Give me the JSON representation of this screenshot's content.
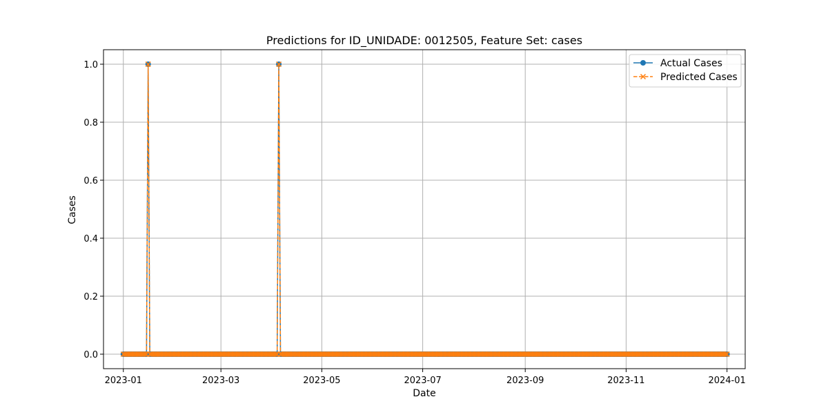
{
  "chart_data": {
    "type": "line",
    "title": "Predictions for ID_UNIDADE: 0012505, Feature Set: cases",
    "xlabel": "Date",
    "ylabel": "Cases",
    "x_range": [
      "2022-12-20",
      "2024-01-12"
    ],
    "ylim": [
      -0.05,
      1.05
    ],
    "x_ticks": [
      "2023-01-01",
      "2023-03-01",
      "2023-05-01",
      "2023-07-01",
      "2023-09-01",
      "2023-11-01",
      "2024-01-01"
    ],
    "x_tick_labels": [
      "2023-01",
      "2023-03",
      "2023-05",
      "2023-07",
      "2023-09",
      "2023-11",
      "2024-01"
    ],
    "y_ticks": [
      0.0,
      0.2,
      0.4,
      0.6,
      0.8,
      1.0
    ],
    "y_tick_labels": [
      "0.0",
      "0.2",
      "0.4",
      "0.6",
      "0.8",
      "1.0"
    ],
    "grid": true,
    "legend_position": "top-right",
    "x_start": "2023-01-01",
    "x_end": "2024-01-01",
    "default_value": 0,
    "spikes": [
      {
        "x": "2023-01-16",
        "y": 1
      },
      {
        "x": "2023-04-05",
        "y": 1
      }
    ],
    "series": [
      {
        "name": "Actual Cases",
        "color": "#1f77b4",
        "line_style": "solid",
        "marker": "circle"
      },
      {
        "name": "Predicted Cases",
        "color": "#ff7f0e",
        "line_style": "dashed",
        "marker": "x"
      }
    ]
  }
}
